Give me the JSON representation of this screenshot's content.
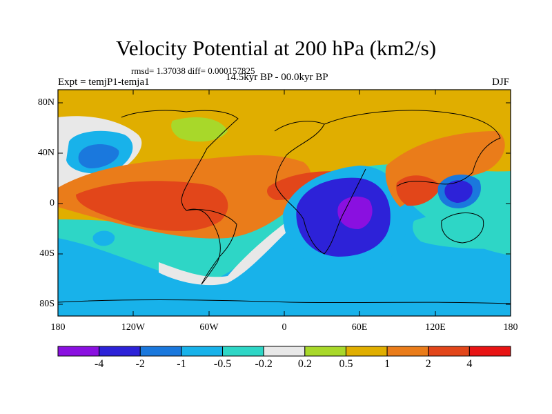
{
  "header": {
    "title": "Velocity Potential at 200 hPa (km2/s)",
    "stats": "rmsd= 1.37038  diff= 0.000157825",
    "experiment": "Expt = temjP1-temja1",
    "period": "14.5kyr BP - 00.0kyr BP",
    "season": "DJF"
  },
  "axes": {
    "lat_labels": [
      "80N",
      "40N",
      "0",
      "40S",
      "80S"
    ],
    "lon_labels": [
      "180",
      "120W",
      "60W",
      "0",
      "60E",
      "120E",
      "180"
    ]
  },
  "colorbar": {
    "colors": [
      "#8a10e0",
      "#2d22d8",
      "#1a78dd",
      "#18b2ea",
      "#2ed6c6",
      "#e8e8e8",
      "#a8d82a",
      "#e0ae00",
      "#ea7c1a",
      "#e2461a",
      "#e81414"
    ],
    "labels": [
      "-4",
      "-2",
      "-1",
      "-0.5",
      "-0.2",
      "0.2",
      "0.5",
      "1",
      "2",
      "4"
    ]
  },
  "map_regions": [
    {
      "name": "north-pacific-negative",
      "level": "-1"
    },
    {
      "name": "tropical-atlantic-south-america-positive",
      "level": "2"
    },
    {
      "name": "indian-ocean-negative-center",
      "level": "-4"
    },
    {
      "name": "west-pacific-negative-center",
      "level": "-2"
    },
    {
      "name": "southern-ocean-negative",
      "level": "-0.5"
    },
    {
      "name": "arctic-positive",
      "level": "1"
    }
  ]
}
